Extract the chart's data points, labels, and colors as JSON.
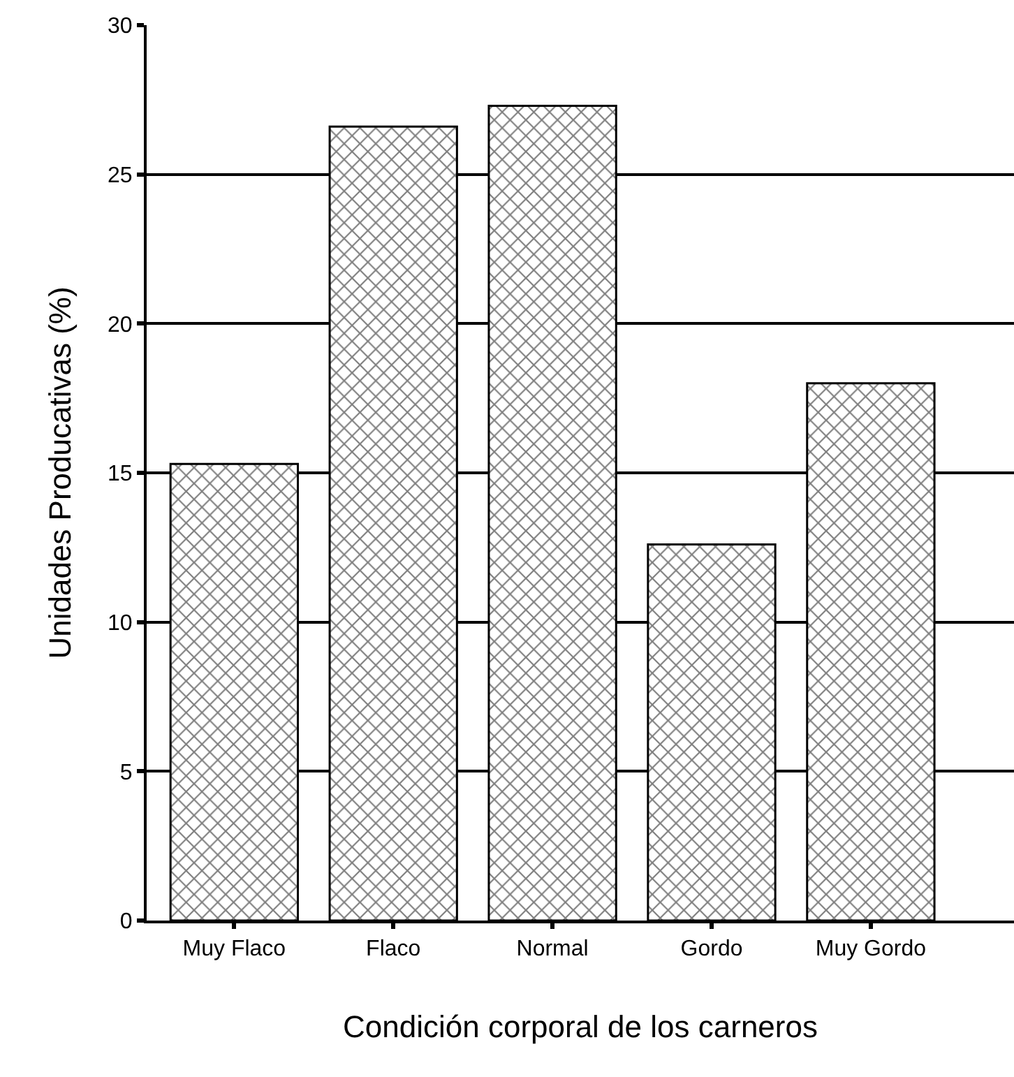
{
  "chart_data": {
    "type": "bar",
    "xlabel": "Condición corporal de los carneros",
    "ylabel": "Unidades Producativas (%)",
    "categories": [
      "Muy Flaco",
      "Flaco",
      "Normal",
      "Gordo",
      "Muy Gordo"
    ],
    "values": [
      15.3,
      26.6,
      27.3,
      12.6,
      18.0
    ],
    "color": "#000000",
    "ylim": [
      0,
      30
    ],
    "yticks": [
      0,
      5,
      10,
      15,
      20,
      25,
      30
    ],
    "grid": "y",
    "legend": false
  }
}
